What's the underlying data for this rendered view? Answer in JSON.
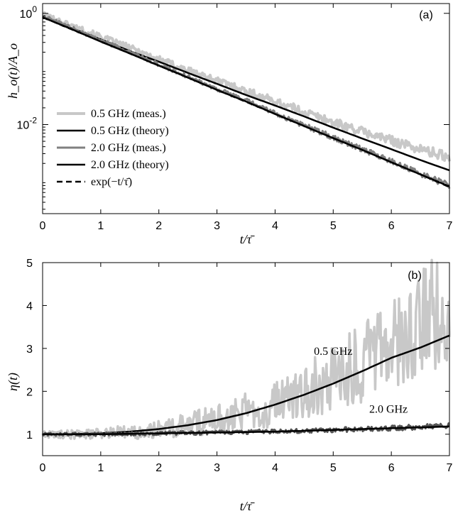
{
  "chart_data": [
    {
      "panel": "a",
      "type": "line",
      "panel_label": "(a)",
      "xlabel": "t/τ̄",
      "ylabel": "h_o(t)/A_o",
      "xlim": [
        0,
        7
      ],
      "ylim": [
        0.00025,
        1.5
      ],
      "yscale": "log",
      "x_ticks": [
        0,
        1,
        2,
        3,
        4,
        5,
        6,
        7
      ],
      "y_ticks": [
        {
          "value": 1,
          "base": "10",
          "exp": "0"
        },
        {
          "value": 0.01,
          "base": "10",
          "exp": "-2"
        }
      ],
      "legend_position": "bottom-left",
      "grid": false,
      "series": [
        {
          "name": "0.5 GHz (meas.)",
          "color": "#c8c8c8",
          "width": 4,
          "dash": "",
          "kind": "noisy",
          "decay_rate": 0.92,
          "noise": 0.05,
          "x": [
            0,
            0.5,
            1,
            1.5,
            2,
            2.5,
            3,
            3.5,
            4,
            4.5,
            5,
            5.5,
            6,
            6.5,
            7
          ],
          "y": [
            0.95,
            0.6,
            0.38,
            0.24,
            0.15,
            0.095,
            0.062,
            0.04,
            0.026,
            0.017,
            0.011,
            0.0075,
            0.0052,
            0.0036,
            0.0026
          ]
        },
        {
          "name": "0.5 GHz (theory)",
          "color": "#000000",
          "width": 2.5,
          "dash": "",
          "kind": "theory",
          "x": [
            0,
            0.5,
            1,
            1.5,
            2,
            2.5,
            3,
            3.5,
            4,
            4.5,
            5,
            5.5,
            6,
            6.5,
            7
          ],
          "y": [
            0.85,
            0.54,
            0.34,
            0.21,
            0.135,
            0.085,
            0.054,
            0.034,
            0.022,
            0.014,
            0.0088,
            0.0056,
            0.0036,
            0.0023,
            0.0015
          ]
        },
        {
          "name": "2.0 GHz (meas.)",
          "color": "#808080",
          "width": 3,
          "dash": "",
          "kind": "noisy",
          "decay_rate": 1.0,
          "noise": 0.03,
          "x": [
            0,
            0.5,
            1,
            1.5,
            2,
            2.5,
            3,
            3.5,
            4,
            4.5,
            5,
            5.5,
            6,
            6.5,
            7
          ],
          "y": [
            0.9,
            0.55,
            0.33,
            0.2,
            0.12,
            0.073,
            0.044,
            0.027,
            0.016,
            0.0097,
            0.0059,
            0.0036,
            0.0022,
            0.0013,
            0.0008
          ]
        },
        {
          "name": "2.0 GHz (theory)",
          "color": "#000000",
          "width": 2.5,
          "dash": "",
          "kind": "theory",
          "x": [
            0,
            0.5,
            1,
            1.5,
            2,
            2.5,
            3,
            3.5,
            4,
            4.5,
            5,
            5.5,
            6,
            6.5,
            7
          ],
          "y": [
            0.85,
            0.52,
            0.31,
            0.19,
            0.115,
            0.07,
            0.042,
            0.026,
            0.0155,
            0.0094,
            0.0057,
            0.0035,
            0.0021,
            0.00127,
            0.00077
          ]
        },
        {
          "name": "exp(−t/τ̄)",
          "color": "#000000",
          "width": 2.5,
          "dash": "8,5",
          "kind": "theory",
          "x": [
            0,
            0.5,
            1,
            1.5,
            2,
            2.5,
            3,
            3.5,
            4,
            4.5,
            5,
            5.5,
            6,
            6.5,
            7
          ],
          "y": [
            0.85,
            0.515,
            0.313,
            0.19,
            0.115,
            0.07,
            0.042,
            0.0256,
            0.0155,
            0.0094,
            0.0057,
            0.0035,
            0.0021,
            0.00127,
            0.00075
          ]
        }
      ]
    },
    {
      "panel": "b",
      "type": "line",
      "panel_label": "(b)",
      "xlabel": "t/τ̄",
      "ylabel": "η(t)",
      "xlim": [
        0,
        7
      ],
      "ylim": [
        0.5,
        5
      ],
      "x_ticks": [
        0,
        1,
        2,
        3,
        4,
        5,
        6,
        7
      ],
      "y_ticks": [
        1,
        2,
        3,
        4,
        5
      ],
      "grid": false,
      "annotations": [
        {
          "text": "0.5 GHz",
          "x": 5.0,
          "y": 2.85
        },
        {
          "text": "2.0 GHz",
          "x": 5.95,
          "y": 1.5
        }
      ],
      "series": [
        {
          "name": "0.5 GHz (meas.)",
          "color": "#c8c8c8",
          "width": 3.5,
          "kind": "noisy_eta",
          "x": [
            0,
            0.5,
            1,
            1.5,
            2,
            2.5,
            3,
            3.5,
            4,
            4.5,
            5,
            5.5,
            6,
            6.5,
            7
          ],
          "y": [
            1.0,
            1.0,
            1.02,
            1.05,
            1.12,
            1.22,
            1.35,
            1.52,
            1.72,
            1.98,
            2.28,
            2.65,
            3.1,
            3.6,
            4.1
          ]
        },
        {
          "name": "0.5 GHz (theory)",
          "color": "#000000",
          "width": 2.5,
          "kind": "theory",
          "x": [
            0,
            0.5,
            1,
            1.5,
            2,
            2.5,
            3,
            3.5,
            4,
            4.5,
            5,
            5.5,
            6,
            6.5,
            7
          ],
          "y": [
            1.0,
            1.0,
            1.02,
            1.06,
            1.12,
            1.21,
            1.33,
            1.49,
            1.69,
            1.92,
            2.18,
            2.47,
            2.78,
            3.02,
            3.3
          ]
        },
        {
          "name": "2.0 GHz (meas.)",
          "color": "#555555",
          "width": 3,
          "kind": "noisy_eta_small",
          "x": [
            0,
            0.5,
            1,
            1.5,
            2,
            2.5,
            3,
            3.5,
            4,
            4.5,
            5,
            5.5,
            6,
            6.5,
            7
          ],
          "y": [
            1.0,
            1.0,
            1.0,
            1.01,
            1.02,
            1.03,
            1.04,
            1.05,
            1.07,
            1.08,
            1.1,
            1.12,
            1.14,
            1.17,
            1.2
          ]
        },
        {
          "name": "2.0 GHz (theory)",
          "color": "#000000",
          "width": 2.5,
          "kind": "theory",
          "x": [
            0,
            0.5,
            1,
            1.5,
            2,
            2.5,
            3,
            3.5,
            4,
            4.5,
            5,
            5.5,
            6,
            6.5,
            7
          ],
          "y": [
            1.0,
            1.0,
            1.0,
            1.01,
            1.02,
            1.03,
            1.04,
            1.05,
            1.06,
            1.08,
            1.1,
            1.12,
            1.14,
            1.16,
            1.18
          ]
        }
      ]
    }
  ]
}
